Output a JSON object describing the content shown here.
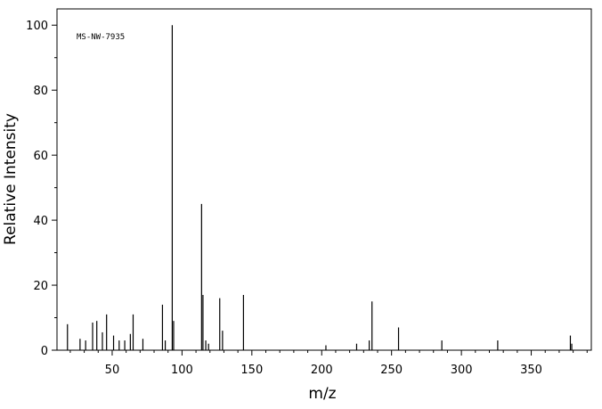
{
  "chart_data": {
    "type": "stem",
    "annotation": "MS-NW-7935",
    "xlabel": "m/z",
    "ylabel": "Relative Intensity",
    "color": "#000000",
    "x": [
      18,
      27,
      31,
      36,
      39,
      43,
      46,
      51,
      55,
      59,
      63,
      65,
      72,
      86,
      88,
      93,
      94,
      114,
      115,
      117,
      119,
      127,
      129,
      144,
      203,
      225,
      234,
      236,
      255,
      286,
      326,
      378,
      379
    ],
    "values": [
      8,
      3.5,
      3,
      8.5,
      9,
      5.5,
      11,
      4.5,
      3,
      3,
      5,
      11,
      3.5,
      14,
      3,
      100,
      9,
      45,
      17,
      3,
      2,
      16,
      6,
      17,
      1.5,
      2,
      3,
      15,
      7,
      3,
      3,
      4.5,
      2
    ],
    "xlim": [
      10.5,
      393
    ],
    "ylim": [
      0,
      105
    ],
    "xticks": [
      50,
      100,
      150,
      200,
      250,
      300,
      350
    ],
    "xminor": [
      20,
      30,
      40,
      60,
      70,
      80,
      90,
      110,
      120,
      130,
      140,
      160,
      170,
      180,
      190,
      210,
      220,
      230,
      240,
      260,
      270,
      280,
      290,
      310,
      320,
      330,
      340,
      360,
      370,
      380,
      390
    ],
    "yticks": [
      0,
      20,
      40,
      60,
      80,
      100
    ],
    "yminor": [
      10,
      30,
      50,
      70,
      90
    ]
  }
}
